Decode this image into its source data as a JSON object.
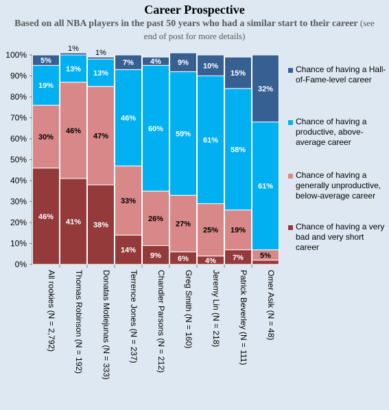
{
  "chart_data": {
    "type": "bar",
    "stacked": true,
    "percent": true,
    "title": "Career Prospective",
    "subtitle": "Based on  all NBA players in the past 50 years who  had a similar start to their career",
    "subtitle_note": "(see end of post for more details)",
    "categories": [
      "All rookies (N = 2,792)",
      "Thomas Robinson (N = 192)",
      "Donatas Motiejunas (N = 333)",
      "Terrence Jones (N = 237)",
      "Chandler Parsons (N = 212)",
      "Greg Smith (N = 160)",
      "Jeremy Lin (N = 218)",
      "Patrick Beverley (N = 111)",
      "Omer Asik (N = 48)"
    ],
    "series": [
      {
        "name": "Chance of having a very bad and very short career",
        "color": "#943a3a",
        "values": [
          46,
          41,
          38,
          14,
          9,
          6,
          4,
          7,
          2
        ],
        "labels": [
          "46%",
          "41%",
          "38%",
          "14%",
          "9%",
          "6%",
          "4%",
          "7%",
          ""
        ]
      },
      {
        "name": "Chance of having a generally unproductive, below-average career",
        "color": "#d88888",
        "values": [
          30,
          46,
          47,
          33,
          26,
          27,
          25,
          19,
          5
        ],
        "labels": [
          "30%",
          "46%",
          "47%",
          "33%",
          "26%",
          "27%",
          "25%",
          "19%",
          "5%"
        ]
      },
      {
        "name": "Chance of having a productive, above-average career",
        "color": "#00b0f0",
        "values": [
          19,
          13,
          13,
          46,
          60,
          59,
          61,
          58,
          61
        ],
        "labels": [
          "19%",
          "13%",
          "13%",
          "46%",
          "60%",
          "59%",
          "61%",
          "58%",
          "61%"
        ]
      },
      {
        "name": "Chance of having a Hall-of-Fame-level career",
        "color": "#376092",
        "values": [
          5,
          1,
          1,
          7,
          4,
          9,
          10,
          15,
          32
        ],
        "labels": [
          "5%",
          "1%",
          "1%",
          "7%",
          "4%",
          "9%",
          "10%",
          "15%",
          "32%"
        ]
      }
    ],
    "yticks": [
      "0%",
      "10%",
      "20%",
      "30%",
      "40%",
      "50%",
      "60%",
      "70%",
      "80%",
      "90%",
      "100%"
    ],
    "ylim": [
      0,
      100
    ],
    "grid": false,
    "legend_position": "right"
  }
}
